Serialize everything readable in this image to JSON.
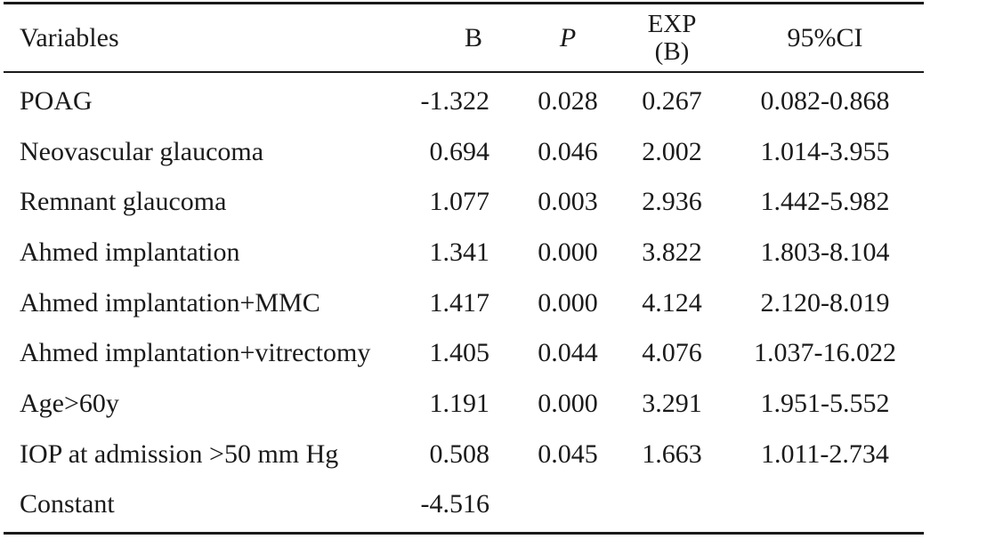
{
  "table": {
    "headers": {
      "variables": "Variables",
      "b": "B",
      "p": "P",
      "exp_line1": "EXP",
      "exp_line2": "(B)",
      "ci": "95%CI"
    },
    "rows": [
      {
        "variable": "POAG",
        "b": "-1.322",
        "p": "0.028",
        "exp": "0.267",
        "ci": "0.082-0.868"
      },
      {
        "variable": "Neovascular glaucoma",
        "b": "0.694",
        "p": "0.046",
        "exp": "2.002",
        "ci": "1.014-3.955"
      },
      {
        "variable": "Remnant glaucoma",
        "b": "1.077",
        "p": "0.003",
        "exp": "2.936",
        "ci": "1.442-5.982"
      },
      {
        "variable": "Ahmed implantation",
        "b": "1.341",
        "p": "0.000",
        "exp": "3.822",
        "ci": "1.803-8.104"
      },
      {
        "variable": "Ahmed implantation+MMC",
        "b": "1.417",
        "p": "0.000",
        "exp": "4.124",
        "ci": "2.120-8.019"
      },
      {
        "variable": "Ahmed implantation+vitrectomy",
        "b": "1.405",
        "p": "0.044",
        "exp": "4.076",
        "ci": "1.037-16.022"
      },
      {
        "variable": "Age>60y",
        "b": "1.191",
        "p": "0.000",
        "exp": "3.291",
        "ci": "1.951-5.552"
      },
      {
        "variable": "IOP at admission >50 mm Hg",
        "b": "0.508",
        "p": "0.045",
        "exp": "1.663",
        "ci": "1.011-2.734"
      },
      {
        "variable": "Constant",
        "b": "-4.516",
        "p": "",
        "exp": "",
        "ci": ""
      }
    ]
  }
}
